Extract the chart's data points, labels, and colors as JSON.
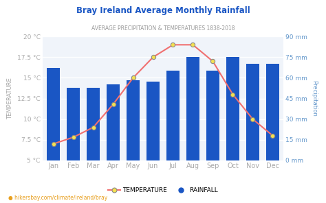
{
  "title": "Bray Ireland Average Monthly Rainfall",
  "subtitle": "AVERAGE PRECIPITATION & TEMPERATURES 1838-2018",
  "months": [
    "Jan",
    "Feb",
    "Mar",
    "Apr",
    "May",
    "Jun",
    "Jul",
    "Aug",
    "Sep",
    "Oct",
    "Nov",
    "Dec"
  ],
  "rainfall_mm": [
    67,
    53,
    53,
    55,
    58,
    57,
    65,
    75,
    65,
    75,
    70,
    70
  ],
  "temperature_c": [
    7.0,
    7.8,
    9.0,
    11.8,
    15.0,
    17.5,
    19.0,
    19.0,
    17.0,
    13.0,
    10.0,
    8.0
  ],
  "bar_color": "#1a56c4",
  "line_color": "#f07070",
  "marker_face": "#f5e050",
  "marker_edge": "#888888",
  "temp_ylim": [
    5,
    20
  ],
  "rain_ylim": [
    0,
    90
  ],
  "temp_yticks": [
    5,
    7.5,
    10,
    12.5,
    15,
    17.5,
    20
  ],
  "temp_ytick_labels": [
    "5 °C",
    "7.5 °C",
    "10 °C",
    "12.5 °C",
    "15 °C",
    "17.5 °C",
    "20 °C"
  ],
  "rain_yticks": [
    0,
    15,
    30,
    45,
    60,
    75,
    90
  ],
  "rain_ytick_labels": [
    "0 mm",
    "15 mm",
    "30 mm",
    "45 mm",
    "60 mm",
    "75 mm",
    "90 mm"
  ],
  "ylabel_left": "TEMPERATURE",
  "ylabel_right": "Precipitation",
  "bg_color": "#ffffff",
  "plot_bg_color": "#f0f4fa",
  "grid_color": "#ffffff",
  "footer": "hikersbay.com/climate/ireland/bray",
  "title_color": "#1a56c4",
  "subtitle_color": "#999999",
  "axis_label_color": "#aaaaaa",
  "right_label_color": "#6699cc",
  "tick_color": "#aaaaaa"
}
